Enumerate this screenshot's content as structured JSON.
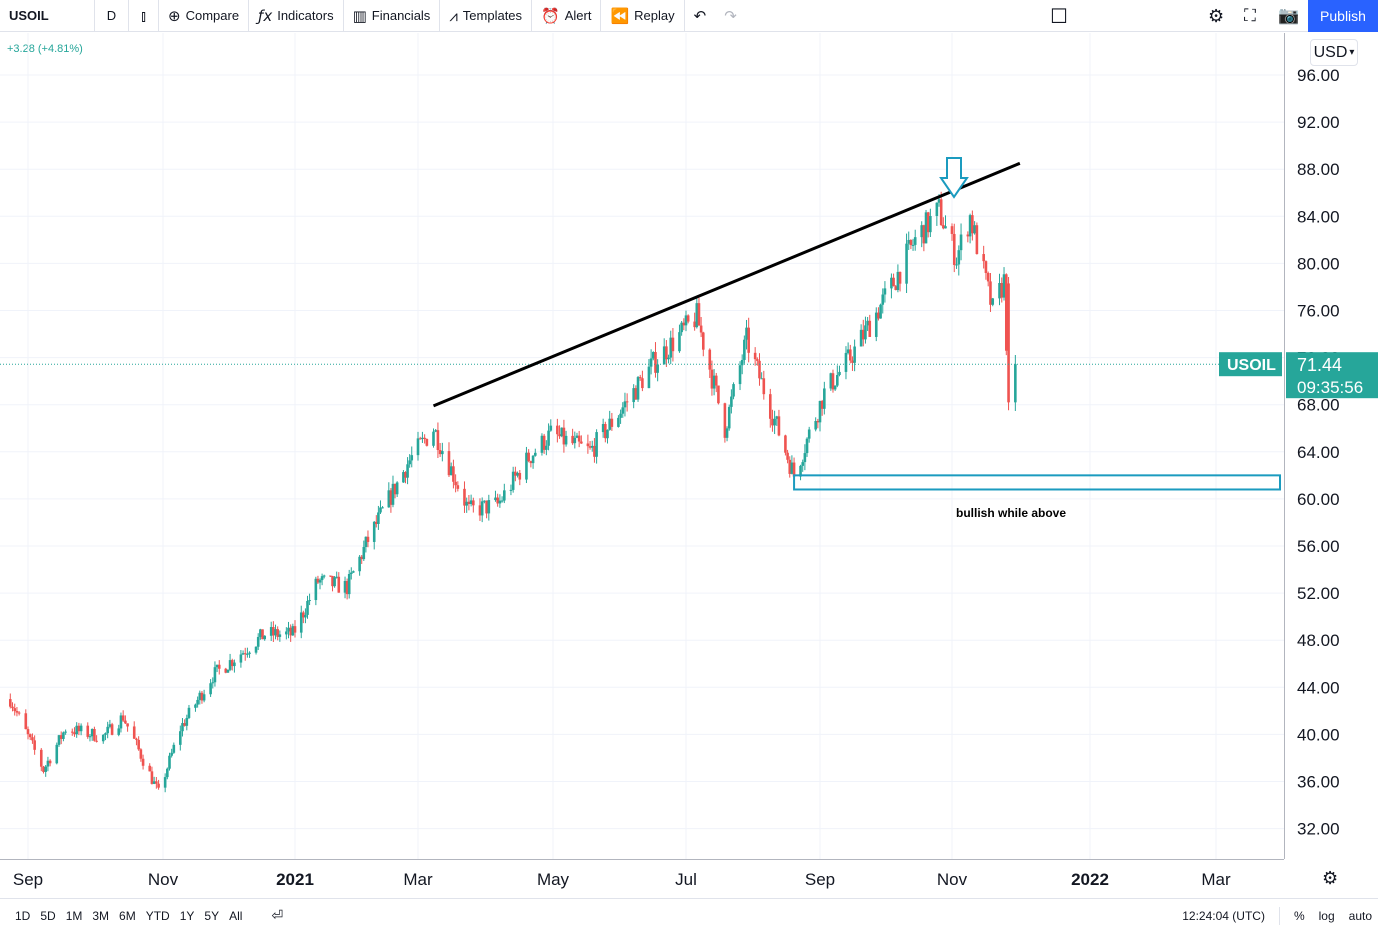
{
  "toolbar": {
    "symbol": "USOIL",
    "interval": "D",
    "compare": "Compare",
    "indicators": "Indicators",
    "financials": "Financials",
    "templates": "Templates",
    "alert": "Alert",
    "replay": "Replay",
    "publish": "Publish"
  },
  "legend": {
    "change": "+3.28 (+4.81%)"
  },
  "currency": "USD",
  "price_label": {
    "symbol": "USOIL",
    "price": "71.44",
    "countdown": "09:35:56"
  },
  "annotation": {
    "text": "bullish while above"
  },
  "bottom": {
    "ranges": [
      "1D",
      "5D",
      "1M",
      "3M",
      "6M",
      "YTD",
      "1Y",
      "5Y",
      "All"
    ],
    "time": "12:24:04 (UTC)",
    "percent": "%",
    "log": "log",
    "auto": "auto"
  },
  "colors": {
    "up": "#26a69a",
    "down": "#ef5350",
    "accent": "#2962ff",
    "box": "#1b9bbf"
  },
  "chart_data": {
    "type": "candlestick",
    "symbol": "USOIL",
    "interval": "D",
    "y_ticks": [
      "96.00",
      "92.00",
      "88.00",
      "84.00",
      "80.00",
      "76.00",
      "72.00",
      "68.00",
      "64.00",
      "60.00",
      "56.00",
      "52.00",
      "48.00",
      "44.00",
      "40.00",
      "36.00",
      "32.00"
    ],
    "x_ticks": [
      {
        "label": "Sep",
        "bold": false,
        "idx": 0
      },
      {
        "label": "Nov",
        "bold": false,
        "idx": 2
      },
      {
        "label": "2021",
        "bold": true,
        "idx": 4
      },
      {
        "label": "Mar",
        "bold": false,
        "idx": 6
      },
      {
        "label": "May",
        "bold": false,
        "idx": 8
      },
      {
        "label": "Jul",
        "bold": false,
        "idx": 10
      },
      {
        "label": "Sep",
        "bold": false,
        "idx": 12
      },
      {
        "label": "Nov",
        "bold": false,
        "idx": 14
      },
      {
        "label": "2022",
        "bold": true,
        "idx": 16
      },
      {
        "label": "Mar",
        "bold": false,
        "idx": 18
      }
    ],
    "ylim": [
      30.0,
      98.5
    ],
    "last_price": 71.44,
    "support_zone": [
      60.8,
      62.0
    ],
    "resistance_line": [
      {
        "date": "2021-03-08",
        "price": 67.9
      },
      {
        "date": "2021-12-01",
        "price": 88.5
      }
    ],
    "anchors": [
      [
        "2020-08-24",
        43.0
      ],
      [
        "2020-09-08",
        37.0
      ],
      [
        "2020-09-18",
        40.5
      ],
      [
        "2020-10-05",
        39.8
      ],
      [
        "2020-10-14",
        41.5
      ],
      [
        "2020-10-30",
        35.0
      ],
      [
        "2020-11-09",
        40.5
      ],
      [
        "2020-11-24",
        45.0
      ],
      [
        "2020-12-18",
        48.5
      ],
      [
        "2020-12-31",
        48.5
      ],
      [
        "2021-01-12",
        53.0
      ],
      [
        "2021-01-26",
        52.5
      ],
      [
        "2021-02-05",
        56.5
      ],
      [
        "2021-02-24",
        63.0
      ],
      [
        "2021-03-08",
        66.0
      ],
      [
        "2021-03-24",
        59.0
      ],
      [
        "2021-04-06",
        59.5
      ],
      [
        "2021-04-20",
        63.5
      ],
      [
        "2021-04-30",
        65.5
      ],
      [
        "2021-05-18",
        64.0
      ],
      [
        "2021-06-01",
        67.5
      ],
      [
        "2021-06-16",
        71.5
      ],
      [
        "2021-07-06",
        75.5
      ],
      [
        "2021-07-19",
        66.0
      ],
      [
        "2021-07-29",
        73.5
      ],
      [
        "2021-08-20",
        62.0
      ],
      [
        "2021-09-03",
        69.0
      ],
      [
        "2021-09-15",
        72.0
      ],
      [
        "2021-10-04",
        78.0
      ],
      [
        "2021-10-15",
        82.0
      ],
      [
        "2021-10-26",
        84.5
      ],
      [
        "2021-11-03",
        80.5
      ],
      [
        "2021-11-09",
        84.0
      ],
      [
        "2021-11-19",
        76.0
      ],
      [
        "2021-11-24",
        78.5
      ],
      [
        "2021-11-26",
        68.5
      ],
      [
        "2021-11-29",
        71.44
      ]
    ]
  }
}
